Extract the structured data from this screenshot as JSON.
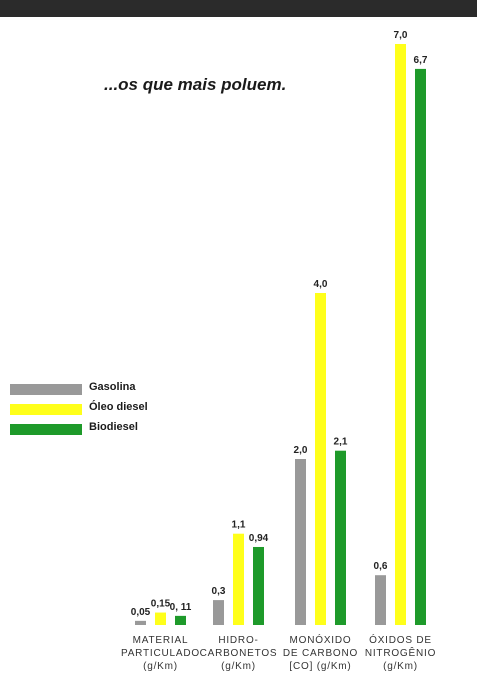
{
  "chart_data": {
    "type": "bar",
    "title": "...os que mais poluem.",
    "categories": [
      [
        "MATERIAL",
        "PARTICULADO",
        "(g/Km)"
      ],
      [
        "HIDRO-",
        "CARBONETOS",
        "(g/Km)"
      ],
      [
        "MONÓXIDO",
        "DE CARBONO",
        "[CO] (g/Km)"
      ],
      [
        "ÓXIDOS DE",
        "NITROGÊNIO",
        "(g/Km)"
      ]
    ],
    "series": [
      {
        "name": "Gasolina",
        "color": "#999999",
        "values": [
          0.05,
          0.3,
          2.0,
          0.6
        ],
        "labels": [
          "0,05",
          "0,3",
          "2,0",
          "0,6"
        ]
      },
      {
        "name": "Óleo diesel",
        "color": "#ffff1a",
        "values": [
          0.15,
          1.1,
          4.0,
          7.0
        ],
        "labels": [
          "0,15",
          "1,1",
          "4,0",
          "7,0"
        ]
      },
      {
        "name": "Biodiesel",
        "color": "#1e9a2a",
        "values": [
          0.11,
          0.94,
          2.1,
          6.7
        ],
        "labels": [
          "0, 11",
          "0,94",
          "2,1",
          "6,7"
        ]
      }
    ],
    "legend_position": "left-middle",
    "grid": false
  }
}
